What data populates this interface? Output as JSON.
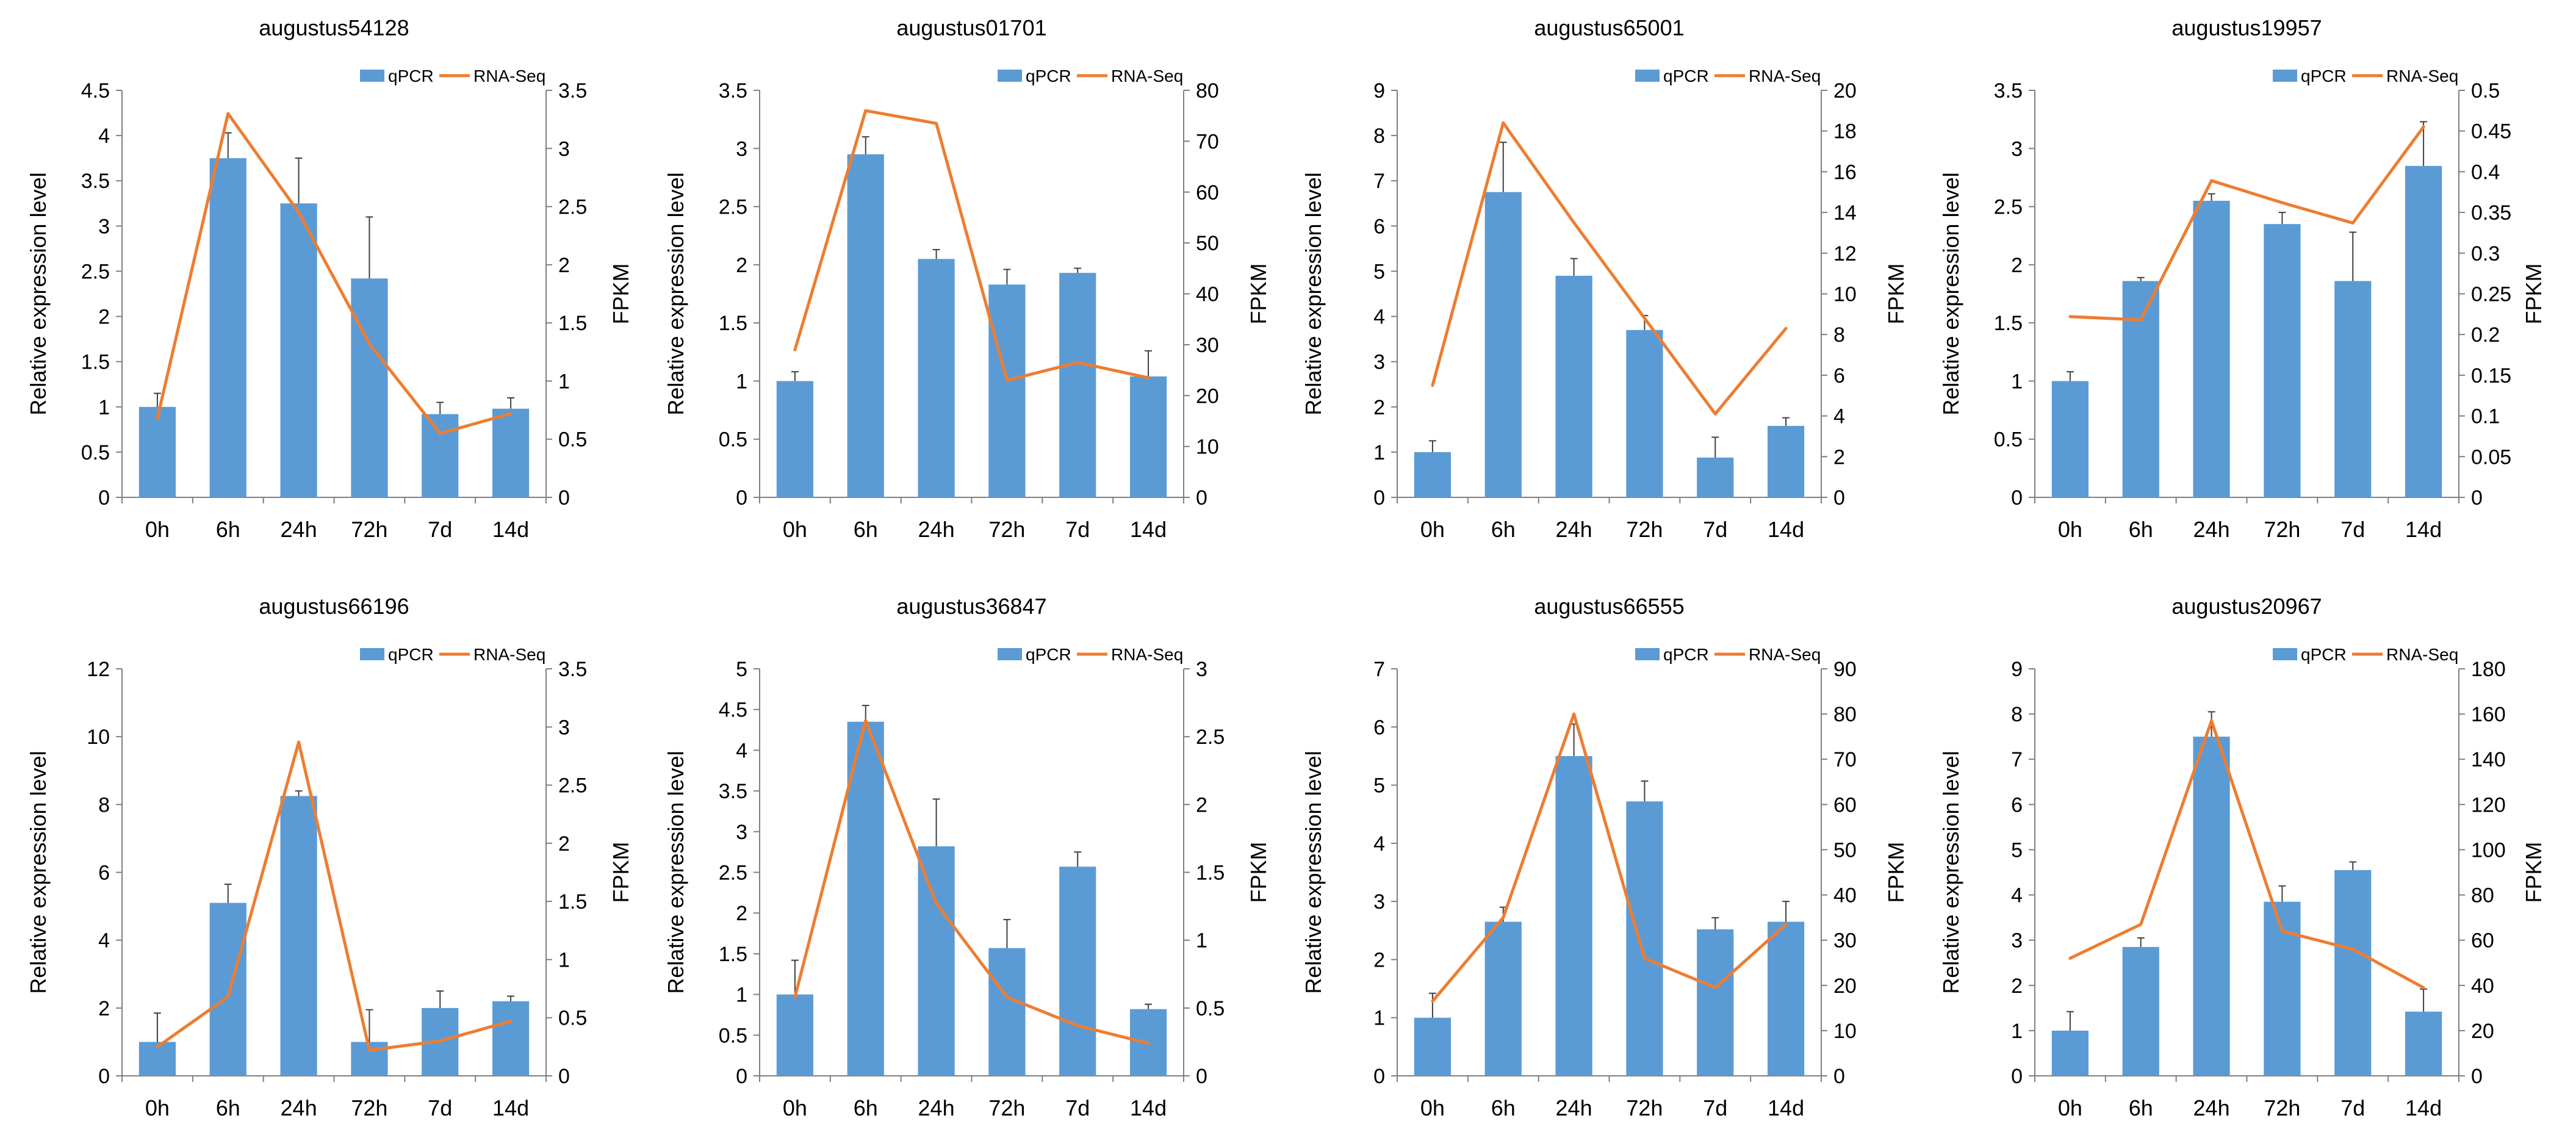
{
  "legend": {
    "bar_label": "qPCR",
    "line_label": "RNA-Seq"
  },
  "colors": {
    "bar": "#5B9BD5",
    "line": "#ED7D31",
    "axis": "#7f7f7f",
    "error": "#404040"
  },
  "chart_data": [
    {
      "type": "bar+line",
      "title": "augustus54128",
      "categories": [
        "0h",
        "6h",
        "24h",
        "72h",
        "7d",
        "14d"
      ],
      "ylabel": "Relative expression level",
      "y2label": "FPKM",
      "ylim": [
        0,
        4.5
      ],
      "yticks": [
        0,
        0.5,
        1,
        1.5,
        2,
        2.5,
        3,
        3.5,
        4,
        4.5
      ],
      "y2lim": [
        0,
        3.5
      ],
      "y2ticks": [
        0,
        0.5,
        1,
        1.5,
        2,
        2.5,
        3,
        3.5
      ],
      "series": [
        {
          "name": "qPCR",
          "type": "bar",
          "values": [
            1.0,
            3.75,
            3.25,
            2.42,
            0.92,
            0.98
          ],
          "errors": [
            0.15,
            0.28,
            0.5,
            0.68,
            0.13,
            0.12
          ]
        },
        {
          "name": "RNA-Seq",
          "type": "line",
          "axis": "secondary",
          "values": [
            0.68,
            3.3,
            2.45,
            1.32,
            0.55,
            0.72
          ]
        }
      ]
    },
    {
      "type": "bar+line",
      "title": "augustus01701",
      "categories": [
        "0h",
        "6h",
        "24h",
        "72h",
        "7d",
        "14d"
      ],
      "ylabel": "Relative expression level",
      "y2label": "FPKM",
      "ylim": [
        0,
        3.5
      ],
      "yticks": [
        0,
        0.5,
        1,
        1.5,
        2,
        2.5,
        3,
        3.5
      ],
      "y2lim": [
        0,
        80
      ],
      "y2ticks": [
        0,
        10,
        20,
        30,
        40,
        50,
        60,
        70,
        80
      ],
      "series": [
        {
          "name": "qPCR",
          "type": "bar",
          "values": [
            1.0,
            2.95,
            2.05,
            1.83,
            1.93,
            1.04
          ],
          "errors": [
            0.08,
            0.15,
            0.08,
            0.13,
            0.04,
            0.22
          ]
        },
        {
          "name": "RNA-Seq",
          "type": "line",
          "axis": "secondary",
          "values": [
            29,
            76,
            73.5,
            23,
            26.5,
            23.5
          ]
        }
      ]
    },
    {
      "type": "bar+line",
      "title": "augustus65001",
      "categories": [
        "0h",
        "6h",
        "24h",
        "72h",
        "7d",
        "14d"
      ],
      "ylabel": "Relative expression level",
      "y2label": "FPKM",
      "ylim": [
        0,
        9
      ],
      "yticks": [
        0,
        1,
        2,
        3,
        4,
        5,
        6,
        7,
        8,
        9
      ],
      "y2lim": [
        0,
        20
      ],
      "y2ticks": [
        0,
        2,
        4,
        6,
        8,
        10,
        12,
        14,
        16,
        18,
        20
      ],
      "series": [
        {
          "name": "qPCR",
          "type": "bar",
          "values": [
            1.0,
            6.75,
            4.9,
            3.7,
            0.88,
            1.58
          ],
          "errors": [
            0.25,
            1.1,
            0.38,
            0.32,
            0.45,
            0.18
          ]
        },
        {
          "name": "RNA-Seq",
          "type": "line",
          "axis": "secondary",
          "values": [
            5.5,
            18.4,
            13.5,
            8.8,
            4.1,
            8.3
          ]
        }
      ]
    },
    {
      "type": "bar+line",
      "title": "augustus19957",
      "categories": [
        "0h",
        "6h",
        "24h",
        "72h",
        "7d",
        "14d"
      ],
      "ylabel": "Relative expression level",
      "y2label": "FPKM",
      "ylim": [
        0,
        3.5
      ],
      "yticks": [
        0,
        0.5,
        1,
        1.5,
        2,
        2.5,
        3,
        3.5
      ],
      "y2lim": [
        0,
        0.5
      ],
      "y2ticks": [
        0,
        0.05,
        0.1,
        0.15,
        0.2,
        0.25,
        0.3,
        0.35,
        0.4,
        0.45,
        0.5
      ],
      "series": [
        {
          "name": "qPCR",
          "type": "bar",
          "values": [
            1.0,
            1.86,
            2.55,
            2.35,
            1.86,
            2.85
          ],
          "errors": [
            0.08,
            0.03,
            0.06,
            0.1,
            0.42,
            0.38
          ]
        },
        {
          "name": "RNA-Seq",
          "type": "line",
          "axis": "secondary",
          "values": [
            0.222,
            0.218,
            0.389,
            0.362,
            0.337,
            0.455
          ]
        }
      ]
    },
    {
      "type": "bar+line",
      "title": "augustus66196",
      "categories": [
        "0h",
        "6h",
        "24h",
        "72h",
        "7d",
        "14d"
      ],
      "ylabel": "Relative expression level",
      "y2label": "FPKM",
      "ylim": [
        0,
        12
      ],
      "yticks": [
        0,
        2,
        4,
        6,
        8,
        10,
        12
      ],
      "y2lim": [
        0,
        3.5
      ],
      "y2ticks": [
        0,
        0.5,
        1,
        1.5,
        2,
        2.5,
        3,
        3.5
      ],
      "series": [
        {
          "name": "qPCR",
          "type": "bar",
          "values": [
            1.0,
            5.1,
            8.25,
            1.0,
            2.0,
            2.2
          ],
          "errors": [
            0.85,
            0.55,
            0.15,
            0.95,
            0.5,
            0.15
          ]
        },
        {
          "name": "RNA-Seq",
          "type": "line",
          "axis": "secondary",
          "values": [
            0.25,
            0.68,
            2.87,
            0.22,
            0.3,
            0.47
          ]
        }
      ]
    },
    {
      "type": "bar+line",
      "title": "augustus36847",
      "categories": [
        "0h",
        "6h",
        "24h",
        "72h",
        "7d",
        "14d"
      ],
      "ylabel": "Relative expression level",
      "y2label": "FPKM",
      "ylim": [
        0,
        5
      ],
      "yticks": [
        0,
        0.5,
        1,
        1.5,
        2,
        2.5,
        3,
        3.5,
        4,
        4.5,
        5
      ],
      "y2lim": [
        0,
        3
      ],
      "y2ticks": [
        0,
        0.5,
        1,
        1.5,
        2,
        2.5,
        3
      ],
      "series": [
        {
          "name": "qPCR",
          "type": "bar",
          "values": [
            1.0,
            4.35,
            2.82,
            1.57,
            2.57,
            0.82
          ],
          "errors": [
            0.42,
            0.2,
            0.58,
            0.35,
            0.18,
            0.06
          ]
        },
        {
          "name": "RNA-Seq",
          "type": "line",
          "axis": "secondary",
          "values": [
            0.58,
            2.62,
            1.27,
            0.58,
            0.37,
            0.24
          ]
        }
      ]
    },
    {
      "type": "bar+line",
      "title": "augustus66555",
      "categories": [
        "0h",
        "6h",
        "24h",
        "72h",
        "7d",
        "14d"
      ],
      "ylabel": "Relative expression level",
      "y2label": "FPKM",
      "ylim": [
        0,
        7
      ],
      "yticks": [
        0,
        1,
        2,
        3,
        4,
        5,
        6,
        7
      ],
      "y2lim": [
        0,
        90
      ],
      "y2ticks": [
        0,
        10,
        20,
        30,
        40,
        50,
        60,
        70,
        80,
        90
      ],
      "series": [
        {
          "name": "qPCR",
          "type": "bar",
          "values": [
            1.0,
            2.65,
            5.5,
            4.72,
            2.52,
            2.65
          ],
          "errors": [
            0.42,
            0.25,
            0.55,
            0.35,
            0.2,
            0.35
          ]
        },
        {
          "name": "RNA-Seq",
          "type": "line",
          "axis": "secondary",
          "values": [
            16.5,
            35,
            80,
            26,
            19.5,
            33.5
          ]
        }
      ]
    },
    {
      "type": "bar+line",
      "title": "augustus20967",
      "categories": [
        "0h",
        "6h",
        "24h",
        "72h",
        "7d",
        "14d"
      ],
      "ylabel": "Relative expression level",
      "y2label": "FPKM",
      "ylim": [
        0,
        9
      ],
      "yticks": [
        0,
        1,
        2,
        3,
        4,
        5,
        6,
        7,
        8,
        9
      ],
      "y2lim": [
        0,
        180
      ],
      "y2ticks": [
        0,
        20,
        40,
        60,
        80,
        100,
        120,
        140,
        160,
        180
      ],
      "series": [
        {
          "name": "qPCR",
          "type": "bar",
          "values": [
            1.0,
            2.85,
            7.5,
            3.85,
            4.55,
            1.42
          ],
          "errors": [
            0.42,
            0.2,
            0.55,
            0.35,
            0.18,
            0.5
          ]
        },
        {
          "name": "RNA-Seq",
          "type": "line",
          "axis": "secondary",
          "values": [
            52,
            67,
            157,
            64,
            56,
            39
          ]
        }
      ]
    }
  ]
}
